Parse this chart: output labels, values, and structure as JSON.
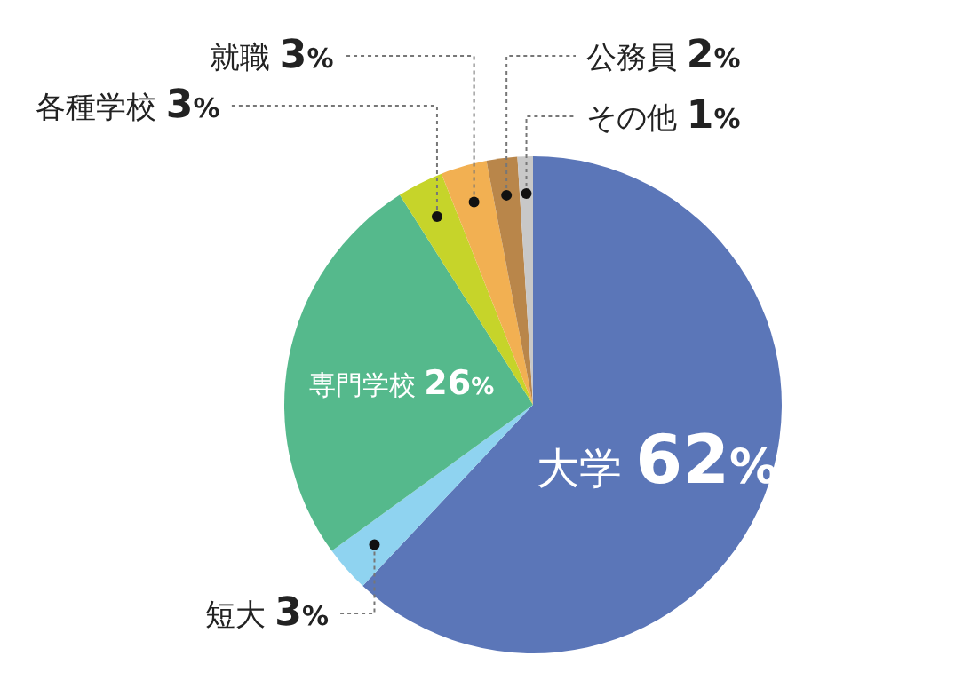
{
  "chart_data": {
    "type": "pie",
    "categories": [
      "大学",
      "短大",
      "専門学校",
      "各種学校",
      "就職",
      "公務員",
      "その他"
    ],
    "values": [
      62,
      3,
      26,
      3,
      3,
      2,
      1
    ],
    "value_labels": [
      "62%",
      "3%",
      "26%",
      "3%",
      "3%",
      "2%",
      "1%"
    ],
    "colors": [
      "#5b76b8",
      "#8fd3f0",
      "#55b98c",
      "#c6d42a",
      "#f2b052",
      "#b9864a",
      "#c8c8c8"
    ]
  }
}
